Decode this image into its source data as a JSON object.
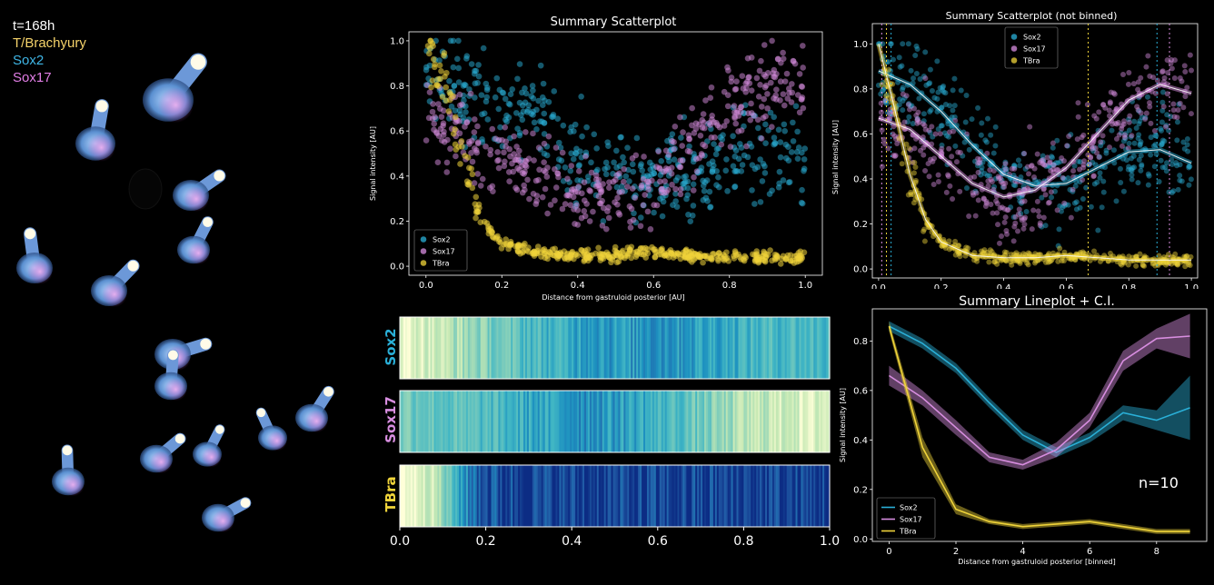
{
  "micrograph": {
    "timepoint": "t=168h",
    "channels": [
      {
        "label": "T/Brachyury",
        "color": "#f5d36a"
      },
      {
        "label": "Sox2",
        "color": "#3fb6e6"
      },
      {
        "label": "Sox17",
        "color": "#e27ee6"
      }
    ]
  },
  "colors": {
    "Sox2": "#2ab0d8",
    "Sox17": "#d88ee0",
    "TBra": "#f0d43a",
    "frame": "#ffffff"
  },
  "chart_data": [
    {
      "id": "scatter_binned",
      "type": "scatter",
      "title": "Summary Scatterplot",
      "xlabel": "Distance from gastruloid posterior [AU]",
      "ylabel": "Signal intensity [AU]",
      "xlim": [
        0,
        1
      ],
      "ylim": [
        0,
        1
      ],
      "xticks": [
        "0.0",
        "0.2",
        "0.4",
        "0.6",
        "0.8",
        "1.0"
      ],
      "yticks": [
        "0.0",
        "0.2",
        "0.4",
        "0.6",
        "0.8",
        "1.0"
      ],
      "legend": [
        "Sox2",
        "Sox17",
        "TBra"
      ],
      "legend_position": "lower-left",
      "series_trends": {
        "Sox2": {
          "x": [
            0,
            0.1,
            0.2,
            0.3,
            0.4,
            0.5,
            0.6,
            0.7,
            0.8,
            0.9,
            1.0
          ],
          "y": [
            0.88,
            0.8,
            0.72,
            0.62,
            0.5,
            0.42,
            0.38,
            0.42,
            0.48,
            0.5,
            0.48
          ],
          "spread": 0.22
        },
        "Sox17": {
          "x": [
            0,
            0.1,
            0.2,
            0.3,
            0.4,
            0.5,
            0.6,
            0.7,
            0.8,
            0.9,
            1.0
          ],
          "y": [
            0.68,
            0.58,
            0.5,
            0.4,
            0.33,
            0.32,
            0.38,
            0.52,
            0.7,
            0.8,
            0.82
          ],
          "spread": 0.2
        },
        "TBra": {
          "x": [
            0,
            0.05,
            0.1,
            0.15,
            0.2,
            0.3,
            0.4,
            0.5,
            0.6,
            0.7,
            0.8,
            0.9,
            1.0
          ],
          "y": [
            0.98,
            0.8,
            0.45,
            0.2,
            0.1,
            0.06,
            0.05,
            0.05,
            0.06,
            0.05,
            0.04,
            0.04,
            0.04
          ],
          "spread": 0.03
        }
      }
    },
    {
      "id": "scatter_unbinned",
      "type": "scatter",
      "title": "Summary Scatterplot (not binned)",
      "ylabel": "Signal intensity [AU]",
      "xlim": [
        0,
        1
      ],
      "ylim": [
        0,
        1
      ],
      "xticks": [
        "0.0",
        "0.2",
        "0.4",
        "0.6",
        "0.8",
        "1.0"
      ],
      "yticks": [
        "0.0",
        "0.2",
        "0.4",
        "0.6",
        "0.8",
        "1.0"
      ],
      "legend": [
        "Sox2",
        "Sox17",
        "TBra"
      ],
      "legend_position": "top-center",
      "fit_lines": {
        "Sox2": {
          "x": [
            0,
            0.1,
            0.2,
            0.3,
            0.4,
            0.5,
            0.6,
            0.7,
            0.8,
            0.9,
            1.0
          ],
          "y": [
            0.88,
            0.82,
            0.7,
            0.55,
            0.42,
            0.37,
            0.38,
            0.45,
            0.52,
            0.53,
            0.47
          ]
        },
        "Sox17": {
          "x": [
            0,
            0.1,
            0.2,
            0.3,
            0.4,
            0.5,
            0.6,
            0.7,
            0.8,
            0.9,
            1.0
          ],
          "y": [
            0.67,
            0.62,
            0.5,
            0.38,
            0.32,
            0.35,
            0.45,
            0.6,
            0.75,
            0.82,
            0.78
          ]
        },
        "TBra": {
          "x": [
            0,
            0.05,
            0.1,
            0.15,
            0.2,
            0.3,
            0.4,
            0.5,
            0.6,
            0.7,
            0.8,
            0.9,
            1.0
          ],
          "y": [
            1.0,
            0.72,
            0.42,
            0.22,
            0.12,
            0.06,
            0.05,
            0.05,
            0.06,
            0.05,
            0.04,
            0.04,
            0.04
          ]
        }
      },
      "vlines": {
        "Sox2": [
          0.04,
          0.89
        ],
        "Sox17": [
          0.01,
          0.93
        ],
        "TBra": [
          0.025,
          0.67
        ]
      }
    },
    {
      "id": "heatmaps",
      "type": "heatmap",
      "rows": [
        "Sox2",
        "Sox17",
        "TBra"
      ],
      "xlim": [
        0,
        1
      ],
      "xticks": [
        "0.0",
        "0.2",
        "0.4",
        "0.6",
        "0.8",
        "1.0"
      ],
      "profiles": {
        "Sox2": {
          "x": [
            0,
            0.05,
            0.1,
            0.15,
            0.2,
            0.3,
            0.4,
            0.5,
            0.6,
            0.7,
            0.8,
            0.9,
            1.0
          ],
          "y": [
            0.95,
            0.88,
            0.78,
            0.7,
            0.6,
            0.45,
            0.35,
            0.3,
            0.28,
            0.32,
            0.4,
            0.45,
            0.42
          ]
        },
        "Sox17": {
          "x": [
            0,
            0.1,
            0.2,
            0.3,
            0.4,
            0.5,
            0.6,
            0.7,
            0.8,
            0.9,
            1.0
          ],
          "y": [
            0.6,
            0.5,
            0.45,
            0.35,
            0.28,
            0.3,
            0.4,
            0.55,
            0.75,
            0.85,
            0.88
          ]
        },
        "TBra": {
          "x": [
            0,
            0.04,
            0.08,
            0.12,
            0.16,
            0.2,
            0.3,
            0.5,
            0.7,
            1.0
          ],
          "y": [
            1.0,
            0.95,
            0.8,
            0.45,
            0.2,
            0.1,
            0.05,
            0.04,
            0.05,
            0.04
          ]
        }
      }
    },
    {
      "id": "lineplot",
      "type": "line",
      "title": "Summary Lineplot + C.I.",
      "xlabel": "Distance from gastruloid posterior [binned]",
      "ylabel": "Signal intensity [AU]",
      "xlim": [
        -0.5,
        9.5
      ],
      "ylim": [
        -0.01,
        0.93
      ],
      "xticks": [
        "0",
        "2",
        "4",
        "6",
        "8"
      ],
      "yticks": [
        "0.0",
        "0.2",
        "0.4",
        "0.6",
        "0.8"
      ],
      "annotation": "n=10",
      "legend_position": "lower-left",
      "x": [
        0,
        1,
        2,
        3,
        4,
        5,
        6,
        7,
        8,
        9
      ],
      "series": [
        {
          "name": "Sox2",
          "values": [
            0.86,
            0.79,
            0.69,
            0.55,
            0.42,
            0.35,
            0.41,
            0.51,
            0.48,
            0.53
          ],
          "ci": [
            0.02,
            0.02,
            0.02,
            0.02,
            0.02,
            0.02,
            0.02,
            0.03,
            0.04,
            0.13
          ]
        },
        {
          "name": "Sox17",
          "values": [
            0.66,
            0.57,
            0.45,
            0.33,
            0.3,
            0.36,
            0.48,
            0.72,
            0.81,
            0.82
          ],
          "ci": [
            0.04,
            0.03,
            0.03,
            0.02,
            0.02,
            0.03,
            0.03,
            0.04,
            0.04,
            0.09
          ]
        },
        {
          "name": "TBra",
          "values": [
            0.86,
            0.37,
            0.12,
            0.07,
            0.05,
            0.06,
            0.07,
            0.05,
            0.03,
            0.03
          ],
          "ci": [
            0.02,
            0.04,
            0.02,
            0.01,
            0.01,
            0.01,
            0.01,
            0.01,
            0.01,
            0.01
          ]
        }
      ]
    }
  ]
}
